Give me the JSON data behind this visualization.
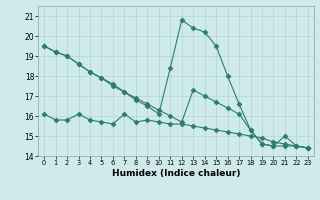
{
  "xlabel": "Humidex (Indice chaleur)",
  "x_values": [
    0,
    1,
    2,
    3,
    4,
    5,
    6,
    7,
    8,
    9,
    10,
    11,
    12,
    13,
    14,
    15,
    16,
    17,
    18,
    19,
    20,
    21,
    22,
    23
  ],
  "series1": [
    19.5,
    19.2,
    19.0,
    18.6,
    18.2,
    17.9,
    17.6,
    17.2,
    16.9,
    16.6,
    16.3,
    16.0,
    15.7,
    17.3,
    17.0,
    16.7,
    16.4,
    16.1,
    15.3,
    14.6,
    14.5,
    14.5,
    14.5,
    14.4
  ],
  "series2": [
    19.5,
    19.2,
    19.0,
    18.6,
    18.2,
    17.9,
    17.5,
    17.2,
    16.8,
    16.5,
    16.1,
    18.4,
    20.8,
    20.4,
    20.2,
    19.5,
    18.0,
    16.6,
    15.3,
    14.6,
    14.5,
    15.0,
    14.5,
    14.4
  ],
  "series3": [
    16.1,
    15.8,
    15.8,
    16.1,
    15.8,
    15.7,
    15.6,
    16.1,
    15.7,
    15.8,
    15.7,
    15.6,
    15.6,
    15.5,
    15.4,
    15.3,
    15.2,
    15.1,
    15.0,
    14.9,
    14.7,
    14.6,
    14.5,
    14.4
  ],
  "line_color": "#2e7b6e",
  "marker": "D",
  "marker_size": 2.5,
  "bg_color": "#ceeaea",
  "grid_color": "#b8d8d8",
  "ylim": [
    14,
    21.5
  ],
  "yticks": [
    14,
    15,
    16,
    17,
    18,
    19,
    20,
    21
  ],
  "xlim": [
    -0.5,
    23.5
  ]
}
